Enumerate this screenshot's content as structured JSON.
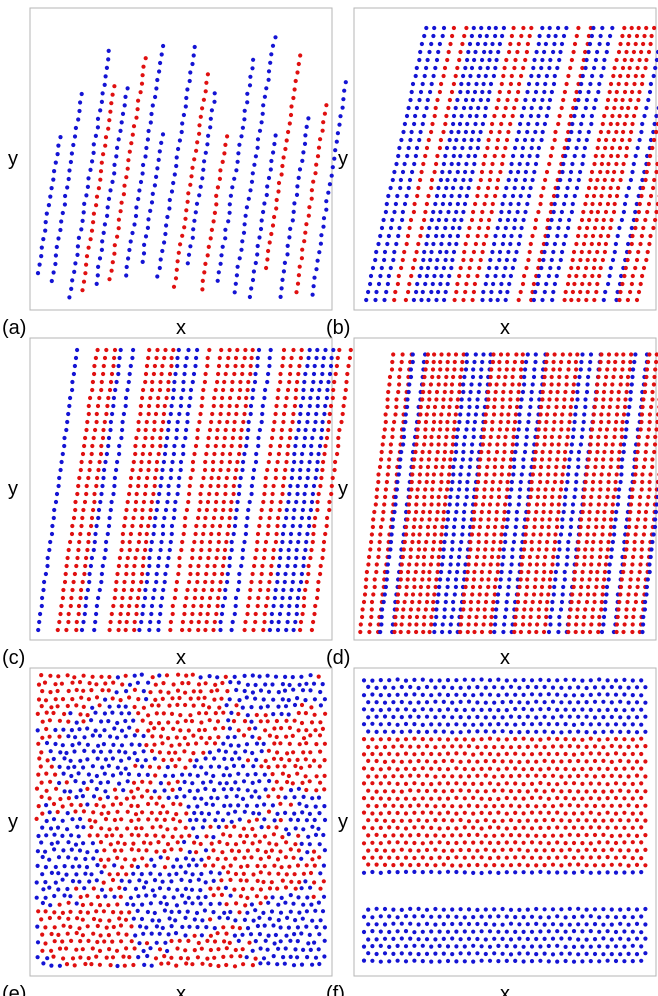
{
  "colors": {
    "species_a": "#e01010",
    "species_b": "#1414d4",
    "frame": "#b5b5b5"
  },
  "chart_data": [
    {
      "panel": "(a)",
      "type": "scatter",
      "xlabel": "x",
      "ylabel": "y",
      "pattern": "sparse tilted chains",
      "grid": false
    },
    {
      "panel": "(b)",
      "type": "scatter",
      "xlabel": "x",
      "ylabel": "y",
      "pattern": "tilted stripes",
      "grid": false
    },
    {
      "panel": "(c)",
      "type": "scatter",
      "xlabel": "x",
      "ylabel": "y",
      "pattern": "tilted chains and stripes",
      "grid": false
    },
    {
      "panel": "(d)",
      "type": "scatter",
      "xlabel": "x",
      "ylabel": "y",
      "pattern": "dense tilted stripes",
      "grid": false
    },
    {
      "panel": "(e)",
      "type": "scatter",
      "xlabel": "x",
      "ylabel": "y",
      "pattern": "disordered mixture",
      "grid": false
    },
    {
      "panel": "(f)",
      "type": "scatter",
      "xlabel": "x",
      "ylabel": "y",
      "pattern": "horizontal phase-separated bands",
      "grid": false
    }
  ]
}
